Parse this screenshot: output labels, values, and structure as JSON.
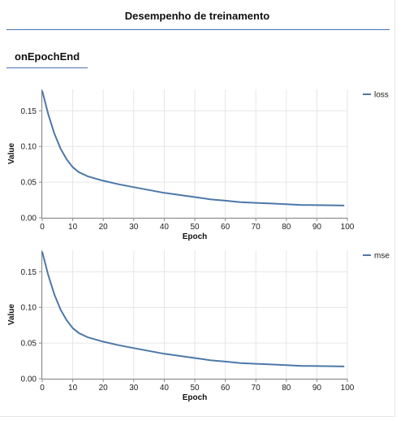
{
  "panel": {
    "title": "Desempenho de treinamento",
    "tab_label": "onEpochEnd"
  },
  "colors": {
    "accent": "#4a73b3",
    "series": "#4c78a8",
    "grid": "#e6e6e6",
    "axis": "#888888"
  },
  "chart_data": [
    {
      "type": "line",
      "xlabel": "Epoch",
      "ylabel": "Value",
      "xlim": [
        0,
        100
      ],
      "ylim": [
        0,
        0.18
      ],
      "xticks": [
        0,
        10,
        20,
        30,
        40,
        50,
        60,
        70,
        80,
        90,
        100
      ],
      "yticks": [
        0,
        0.05,
        0.1,
        0.15
      ],
      "ytick_labels": [
        "0.00",
        "0.05",
        "0.10",
        "0.15"
      ],
      "grid": true,
      "legend_position": "top-right",
      "series": [
        {
          "name": "loss",
          "x": [
            0,
            2,
            4,
            6,
            8,
            10,
            12,
            15,
            20,
            25,
            30,
            35,
            40,
            45,
            50,
            55,
            60,
            65,
            70,
            75,
            80,
            85,
            90,
            95,
            99
          ],
          "y": [
            0.178,
            0.145,
            0.118,
            0.097,
            0.082,
            0.071,
            0.064,
            0.058,
            0.052,
            0.047,
            0.043,
            0.039,
            0.035,
            0.032,
            0.029,
            0.026,
            0.024,
            0.022,
            0.021,
            0.02,
            0.019,
            0.018,
            0.0178,
            0.0175,
            0.0172
          ]
        }
      ]
    },
    {
      "type": "line",
      "xlabel": "Epoch",
      "ylabel": "Value",
      "xlim": [
        0,
        100
      ],
      "ylim": [
        0,
        0.18
      ],
      "xticks": [
        0,
        10,
        20,
        30,
        40,
        50,
        60,
        70,
        80,
        90,
        100
      ],
      "yticks": [
        0,
        0.05,
        0.1,
        0.15
      ],
      "ytick_labels": [
        "0.00",
        "0.05",
        "0.10",
        "0.15"
      ],
      "grid": true,
      "legend_position": "top-right",
      "series": [
        {
          "name": "mse",
          "x": [
            0,
            2,
            4,
            6,
            8,
            10,
            12,
            15,
            20,
            25,
            30,
            35,
            40,
            45,
            50,
            55,
            60,
            65,
            70,
            75,
            80,
            85,
            90,
            95,
            99
          ],
          "y": [
            0.178,
            0.145,
            0.118,
            0.097,
            0.082,
            0.071,
            0.064,
            0.058,
            0.052,
            0.047,
            0.043,
            0.039,
            0.035,
            0.032,
            0.029,
            0.026,
            0.024,
            0.022,
            0.021,
            0.02,
            0.019,
            0.018,
            0.0178,
            0.0175,
            0.0172
          ]
        }
      ]
    }
  ]
}
